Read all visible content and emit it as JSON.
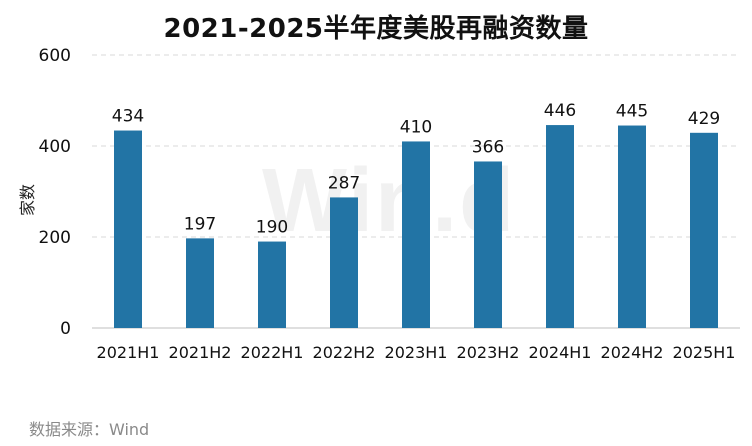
{
  "title": "2021-2025半年度美股再融资数量",
  "watermark": "Win.d",
  "source_note": "数据来源：Wind",
  "colors": {
    "bar": "#2274A5",
    "grid": "#d9d9d9",
    "axis": "#bfbfbf",
    "text": "#111111"
  },
  "chart_data": {
    "type": "bar",
    "title": "2021-2025半年度美股再融资数量",
    "xlabel": "",
    "ylabel": "家数",
    "categories": [
      "2021H1",
      "2021H2",
      "2022H1",
      "2022H2",
      "2023H1",
      "2023H2",
      "2024H1",
      "2024H2",
      "2025H1"
    ],
    "values": [
      434,
      197,
      190,
      287,
      410,
      366,
      446,
      445,
      429
    ],
    "ylim": [
      0,
      600
    ],
    "yticks": [
      0,
      200,
      400,
      600
    ],
    "grid": true,
    "data_labels": true
  }
}
